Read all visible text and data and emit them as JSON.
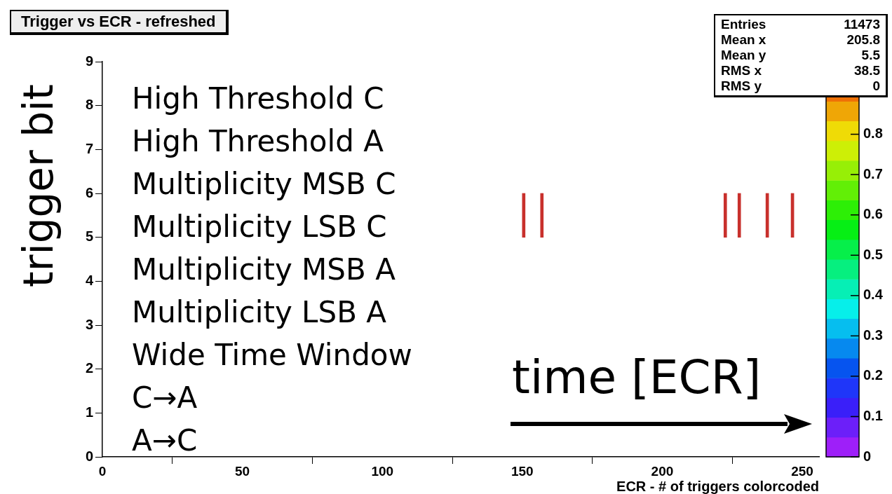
{
  "chart_data": {
    "type": "bar",
    "title": "Trigger vs ECR - refreshed",
    "xlabel": "ECR - # of triggers colorcoded",
    "ylabel": "trigger bit",
    "x": [
      150.5,
      157,
      222.5,
      227.5,
      237.5,
      246.5
    ],
    "base": [
      5,
      5,
      5,
      5,
      5,
      5
    ],
    "values": [
      1,
      1,
      1,
      1,
      1,
      1
    ],
    "colors": [
      "#c8302c",
      "#c8302c",
      "#c8302c",
      "#c8302c",
      "#c8302c",
      "#c8302c"
    ],
    "clim": [
      0,
      0.98
    ],
    "cticks": [
      0,
      0.1,
      0.2,
      0.3,
      0.4,
      0.5,
      0.6,
      0.7,
      0.8
    ],
    "xlim": [
      0,
      256
    ],
    "xticks": [
      0,
      50,
      100,
      150,
      200,
      250
    ],
    "ylim": [
      0,
      9
    ],
    "yticks": [
      0,
      1,
      2,
      3,
      4,
      5,
      6,
      7,
      8,
      9
    ],
    "grid": false,
    "legend": false,
    "annotations": [
      "High Threshold C",
      "High Threshold A",
      "Multiplicity MSB C",
      "Multiplicity LSB C",
      "Multiplicity MSB A",
      "Multiplicity LSB A",
      "Wide Time Window",
      "C→A",
      "A→C",
      "time [ECR]",
      "Entries 11473",
      "Mean x 205.8",
      "Mean y 5.5",
      "RMS x 38.5",
      "RMS y 0"
    ]
  }
}
